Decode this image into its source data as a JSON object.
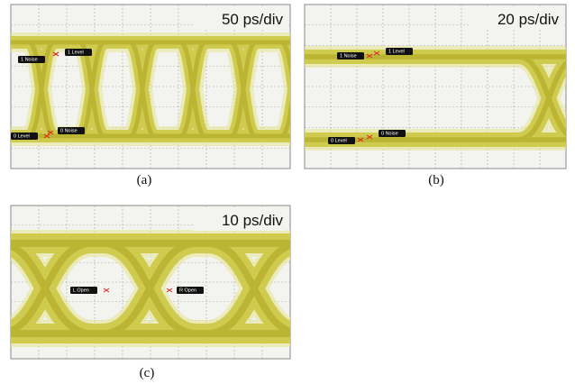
{
  "panels": [
    {
      "scale": "50 ps/div",
      "caption": "(a)",
      "labels": [
        "1 Noise",
        "1 Level",
        "0 Level",
        "0 Noise"
      ]
    },
    {
      "scale": "20 ps/div",
      "caption": "(b)",
      "labels": [
        "1 Noise",
        "1 Level",
        "0 Level",
        "0 Noise"
      ]
    },
    {
      "scale": "10 ps/div",
      "caption": "(c)",
      "labels": [
        "L Open",
        "R Open"
      ]
    }
  ]
}
